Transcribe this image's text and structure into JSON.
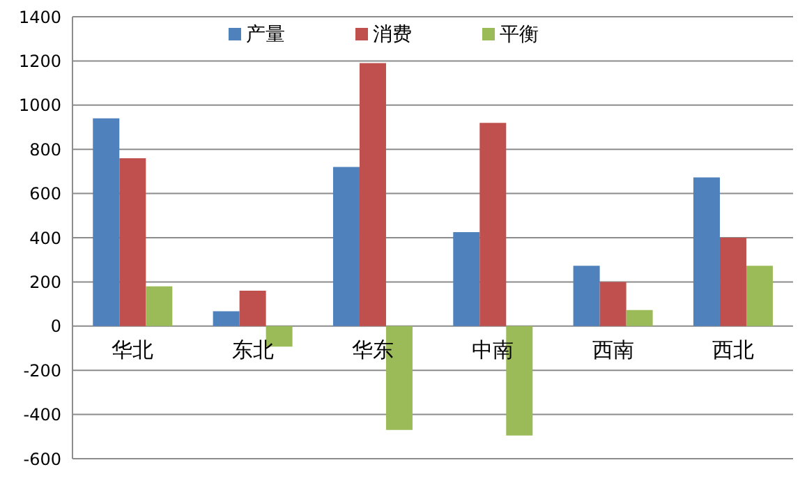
{
  "chart_data": {
    "type": "bar",
    "categories": [
      "华北",
      "东北",
      "华东",
      "中南",
      "西南",
      "西北"
    ],
    "series": [
      {
        "name": "产量",
        "color": "#4f81bd",
        "values": [
          940,
          67,
          720,
          425,
          273,
          673
        ]
      },
      {
        "name": "消费",
        "color": "#c0504d",
        "values": [
          760,
          160,
          1190,
          920,
          200,
          400
        ]
      },
      {
        "name": "平衡",
        "color": "#9bbb59",
        "values": [
          180,
          -93,
          -470,
          -495,
          73,
          273
        ]
      }
    ],
    "ylim": [
      -600,
      1400
    ],
    "yticks": [
      -600,
      -400,
      -200,
      0,
      200,
      400,
      600,
      800,
      1000,
      1200,
      1400
    ],
    "grid": "y",
    "legend": "top"
  }
}
